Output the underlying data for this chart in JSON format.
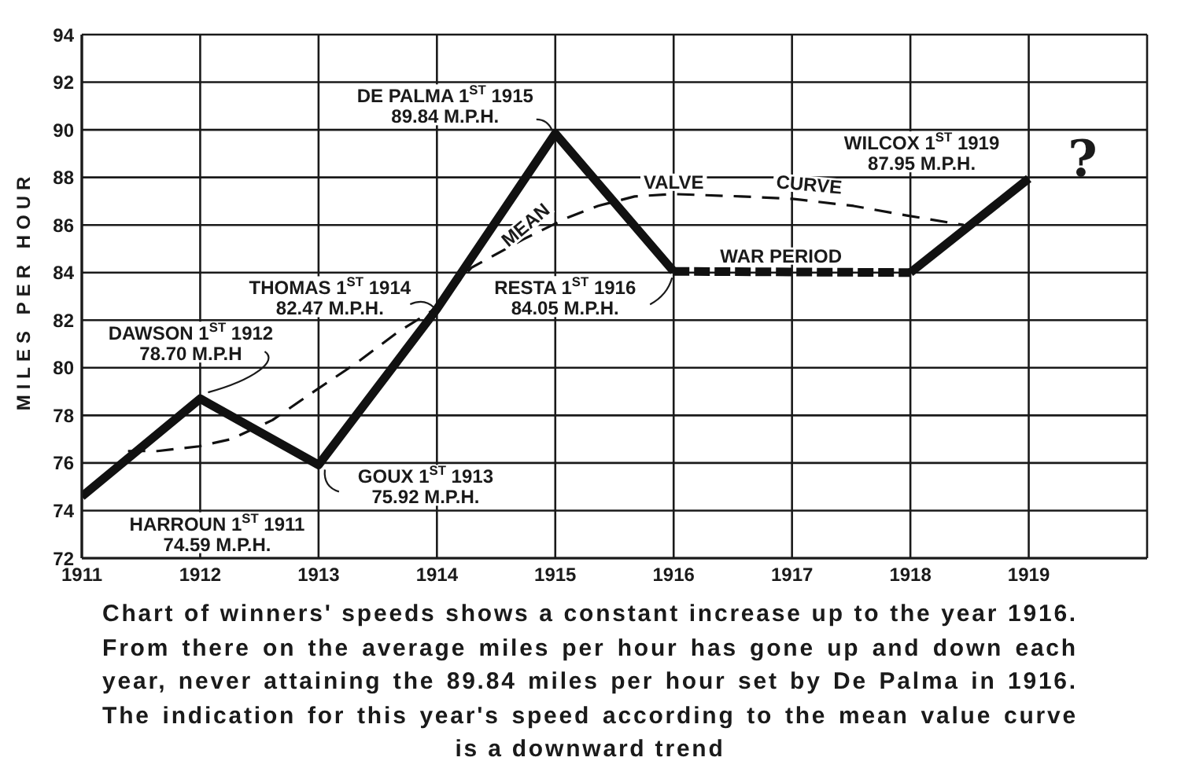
{
  "chart_data": {
    "type": "line",
    "ylabel": "MILES PER HOUR",
    "series": [
      {
        "color": "#111111",
        "x": [
          1911,
          1912,
          1913,
          1914,
          1915,
          1916
        ],
        "values": [
          74.59,
          78.7,
          75.92,
          82.47,
          89.84,
          84.05
        ],
        "line_style": "solid"
      },
      {
        "color": "#111111",
        "x": [
          1916,
          1918
        ],
        "values": [
          84.05,
          84
        ],
        "line_style": "dashed"
      },
      {
        "color": "#111111",
        "x": [
          1918,
          1919
        ],
        "values": [
          84,
          87.95
        ],
        "line_style": "solid"
      },
      {
        "color": "#111111",
        "x": [
          1911.39,
          1911.64,
          1911.99,
          1912.26,
          1912.61,
          1912.96,
          1913.32,
          1913.67,
          1913.96,
          1914.29,
          1914.73,
          1915.1,
          1915.36,
          1915.67,
          1916.0,
          1916.57,
          1917.0,
          1917.52,
          1917.97,
          1918.45
        ],
        "values": [
          76.5,
          76.5,
          76.7,
          77.0,
          77.8,
          79.0,
          80.2,
          81.5,
          82.4,
          84.2,
          85.4,
          86.3,
          86.8,
          87.2,
          87.3,
          87.2,
          87.1,
          86.8,
          86.4,
          86.0
        ],
        "line_style": "dashed"
      }
    ],
    "xlim": [
      1911,
      1920
    ],
    "xticks": [
      1911,
      1912,
      1913,
      1914,
      1915,
      1916,
      1917,
      1918,
      1919
    ],
    "ylim": [
      72,
      94
    ],
    "yticks": [
      72,
      74,
      76,
      78,
      80,
      82,
      84,
      86,
      88,
      90,
      92,
      94
    ],
    "grid": true,
    "annotations": [
      {
        "text": "HARROUN 1$^{ST}$ 1911\n74.59 M.P.H.",
        "x": 1911,
        "y": 74.59
      },
      {
        "text": "DAWSON 1$^{ST}$ 1912\n78.70 M.P.H",
        "x": 1912,
        "y": 78.7
      },
      {
        "text": "GOUX 1$^{ST}$ 1913\n75.92 M.P.H.",
        "x": 1913,
        "y": 75.92
      },
      {
        "text": "THOMAS 1$^{ST}$ 1914\n82.47 M.P.H.",
        "x": 1914,
        "y": 82.47
      },
      {
        "text": "DE PALMA 1$^{ST}$ 1915\n89.84 M.P.H.",
        "x": 1915,
        "y": 89.84
      },
      {
        "text": "RESTA 1$^{ST}$ 1916\n84.05 M.P.H.",
        "x": 1916,
        "y": 84.05
      },
      {
        "text": "WILCOX 1$^{ST}$ 1919\n87.95 M.P.H.",
        "x": 1919,
        "y": 87.95
      },
      {
        "text": "WAR PERIOD",
        "x": 1917,
        "y": 84
      },
      {
        "text": "MEAN",
        "x": 1914.73,
        "y": 85.4
      },
      {
        "text": "VALVE",
        "x": 1916,
        "y": 87.3
      },
      {
        "text": "CURVE",
        "x": 1917.1,
        "y": 87.1
      },
      "?",
      "Chart of winners' speeds shows a constant increase up to the year 1916. From there on the average miles per hour has gone up and down each year, never attaining the 89.84 miles per hour set by De Palma in 1916. The indication for this year's speed according to the mean value curve is a downward trend"
    ]
  }
}
